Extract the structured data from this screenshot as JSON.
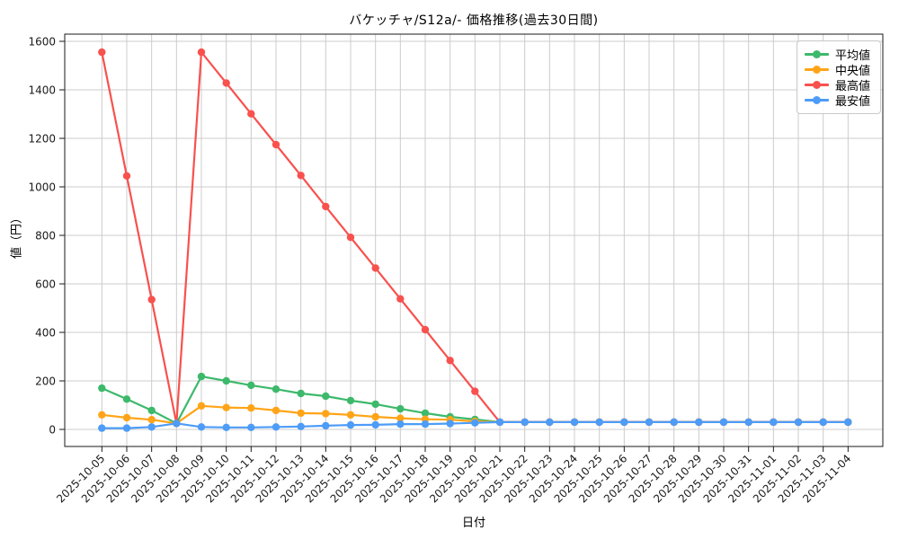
{
  "chart_data": {
    "type": "line",
    "title": "バケッチャ/S12a/- 価格推移(過去30日間)",
    "xlabel": "日付",
    "ylabel": "値（円）",
    "grid": true,
    "legend_position": "upper right",
    "marker": "circle",
    "ylim": [
      -70,
      1630
    ],
    "yticks": [
      0,
      200,
      400,
      600,
      800,
      1000,
      1200,
      1400,
      1600
    ],
    "categories": [
      "2025-10-05",
      "2025-10-06",
      "2025-10-07",
      "2025-10-08",
      "2025-10-09",
      "2025-10-10",
      "2025-10-11",
      "2025-10-12",
      "2025-10-13",
      "2025-10-14",
      "2025-10-15",
      "2025-10-16",
      "2025-10-17",
      "2025-10-18",
      "2025-10-19",
      "2025-10-20",
      "2025-10-21",
      "2025-10-22",
      "2025-10-23",
      "2025-10-24",
      "2025-10-25",
      "2025-10-26",
      "2025-10-27",
      "2025-10-28",
      "2025-10-29",
      "2025-10-30",
      "2025-10-31",
      "2025-11-01",
      "2025-11-02",
      "2025-11-03",
      "2025-11-04"
    ],
    "series": [
      {
        "key": "average",
        "name": "平均値",
        "color": "#3db96b",
        "values": [
          170,
          125,
          78,
          25,
          218,
          200,
          182,
          166,
          148,
          137,
          119,
          104,
          85,
          67,
          52,
          41,
          30,
          30,
          30,
          30,
          30,
          30,
          30,
          30,
          30,
          30,
          30,
          30,
          30,
          30,
          30
        ]
      },
      {
        "key": "median",
        "name": "中央値",
        "color": "#ffa418",
        "values": [
          60,
          48,
          40,
          25,
          97,
          90,
          88,
          78,
          67,
          65,
          60,
          52,
          46,
          42,
          40,
          33,
          30,
          30,
          30,
          30,
          30,
          30,
          30,
          30,
          30,
          30,
          30,
          30,
          30,
          30,
          30
        ]
      },
      {
        "key": "max",
        "name": "最高値",
        "color": "#f8514e",
        "values": [
          1555,
          1045,
          535,
          25,
          1555,
          1428,
          1301,
          1174,
          1047,
          919,
          792,
          665,
          538,
          411,
          284,
          157,
          30,
          30,
          30,
          30,
          30,
          30,
          30,
          30,
          30,
          30,
          30,
          30,
          30,
          30,
          30
        ]
      },
      {
        "key": "min",
        "name": "最安値",
        "color": "#4d9cf7",
        "values": [
          5,
          5,
          10,
          25,
          10,
          8,
          8,
          10,
          12,
          15,
          18,
          19,
          22,
          22,
          24,
          27,
          30,
          30,
          30,
          30,
          30,
          30,
          30,
          30,
          30,
          30,
          30,
          30,
          30,
          30,
          30
        ]
      }
    ],
    "colors": {
      "grid": "#cccccc",
      "spine": "#1a1a1a",
      "tick_text": "#1a1a1a"
    }
  }
}
